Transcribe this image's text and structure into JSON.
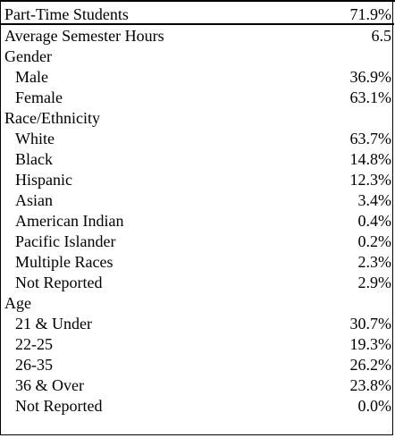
{
  "header": {
    "label": "Part-Time Students",
    "value": "71.9%"
  },
  "rows": [
    {
      "label": "Average Semester Hours",
      "value": "6.5",
      "indent": false
    },
    {
      "label": "Gender",
      "value": "",
      "indent": false
    },
    {
      "label": "Male",
      "value": "36.9%",
      "indent": true
    },
    {
      "label": "Female",
      "value": "63.1%",
      "indent": true
    },
    {
      "label": "Race/Ethnicity",
      "value": "",
      "indent": false
    },
    {
      "label": "White",
      "value": "63.7%",
      "indent": true
    },
    {
      "label": "Black",
      "value": "14.8%",
      "indent": true
    },
    {
      "label": "Hispanic",
      "value": "12.3%",
      "indent": true
    },
    {
      "label": "Asian",
      "value": "3.4%",
      "indent": true
    },
    {
      "label": "American Indian",
      "value": "0.4%",
      "indent": true
    },
    {
      "label": "Pacific Islander",
      "value": "0.2%",
      "indent": true
    },
    {
      "label": "Multiple Races",
      "value": "2.3%",
      "indent": true
    },
    {
      "label": "Not Reported",
      "value": "2.9%",
      "indent": true
    },
    {
      "label": "Age",
      "value": "",
      "indent": false
    },
    {
      "label": "21 & Under",
      "value": "30.7%",
      "indent": true
    },
    {
      "label": "22-25",
      "value": "19.3%",
      "indent": true
    },
    {
      "label": "26-35",
      "value": "26.2%",
      "indent": true
    },
    {
      "label": "36 & Over",
      "value": "23.8%",
      "indent": true
    },
    {
      "label": "Not Reported",
      "value": "0.0%",
      "indent": true
    }
  ]
}
